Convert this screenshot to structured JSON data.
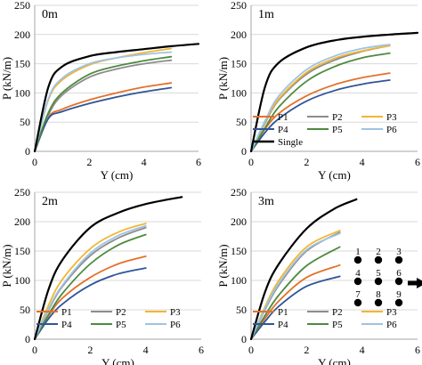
{
  "chart_data": [
    {
      "type": "line",
      "panel_label": "0m",
      "xlabel": "Y (cm)",
      "ylabel": "P (kN/m)",
      "xlim": [
        0,
        6
      ],
      "ylim": [
        0,
        250
      ],
      "xticks": [
        0,
        2,
        4,
        6
      ],
      "yticks": [
        0,
        50,
        100,
        150,
        200,
        250
      ],
      "series": [
        {
          "name": "P1",
          "color": "#e3712a",
          "x": [
            0,
            0.5,
            1,
            2,
            3,
            4,
            5
          ],
          "y": [
            0,
            58,
            72,
            88,
            100,
            110,
            117
          ]
        },
        {
          "name": "P2",
          "color": "#8c8c8c",
          "x": [
            0,
            0.5,
            1,
            2,
            3,
            4,
            5
          ],
          "y": [
            0,
            62,
            96,
            127,
            141,
            150,
            156
          ]
        },
        {
          "name": "P3",
          "color": "#f2b632",
          "x": [
            0,
            0.5,
            1,
            2,
            3,
            4,
            5
          ],
          "y": [
            0,
            88,
            122,
            148,
            160,
            169,
            176
          ]
        },
        {
          "name": "P4",
          "color": "#2f5597",
          "x": [
            0,
            0.5,
            1,
            2,
            3,
            4,
            5
          ],
          "y": [
            0,
            56,
            68,
            82,
            93,
            102,
            109
          ]
        },
        {
          "name": "P5",
          "color": "#4e8a3e",
          "x": [
            0,
            0.5,
            1,
            2,
            3,
            4,
            5
          ],
          "y": [
            0,
            66,
            100,
            132,
            146,
            155,
            162
          ]
        },
        {
          "name": "P6",
          "color": "#9dc3e6",
          "x": [
            0,
            0.5,
            1,
            2,
            3,
            4,
            5
          ],
          "y": [
            0,
            90,
            125,
            150,
            160,
            166,
            170
          ]
        },
        {
          "name": "Single",
          "color": "#000000",
          "x": [
            0,
            0.5,
            1,
            2,
            3,
            4,
            5,
            6
          ],
          "y": [
            0,
            110,
            145,
            163,
            170,
            175,
            180,
            184
          ]
        }
      ]
    },
    {
      "type": "line",
      "panel_label": "1m",
      "xlabel": "Y (cm)",
      "ylabel": "P (kN/m)",
      "xlim": [
        0,
        6
      ],
      "ylim": [
        0,
        250
      ],
      "xticks": [
        0,
        2,
        4,
        6
      ],
      "yticks": [
        0,
        50,
        100,
        150,
        200,
        250
      ],
      "legend": {
        "position": "bottom-left",
        "entries": [
          "P1",
          "P2",
          "P3",
          "P4",
          "P5",
          "P6",
          "Single"
        ]
      },
      "series": [
        {
          "name": "P1",
          "color": "#e3712a",
          "x": [
            0,
            0.5,
            1,
            2,
            3,
            4,
            5
          ],
          "y": [
            0,
            38,
            65,
            95,
            114,
            126,
            134
          ]
        },
        {
          "name": "P2",
          "color": "#8c8c8c",
          "x": [
            0,
            0.5,
            1,
            2,
            3,
            4,
            5
          ],
          "y": [
            0,
            48,
            88,
            132,
            156,
            171,
            181
          ]
        },
        {
          "name": "P3",
          "color": "#f2b632",
          "x": [
            0,
            0.5,
            1,
            2,
            3,
            4,
            5
          ],
          "y": [
            0,
            50,
            90,
            135,
            159,
            172,
            181
          ]
        },
        {
          "name": "P4",
          "color": "#2f5597",
          "x": [
            0,
            0.5,
            1,
            2,
            3,
            4,
            5
          ],
          "y": [
            0,
            32,
            56,
            86,
            104,
            115,
            122
          ]
        },
        {
          "name": "P5",
          "color": "#4e8a3e",
          "x": [
            0,
            0.5,
            1,
            2,
            3,
            4,
            5
          ],
          "y": [
            0,
            40,
            76,
            120,
            145,
            160,
            168
          ]
        },
        {
          "name": "P6",
          "color": "#9dc3e6",
          "x": [
            0,
            0.5,
            1,
            2,
            3,
            4,
            5
          ],
          "y": [
            0,
            52,
            95,
            140,
            163,
            176,
            183
          ]
        },
        {
          "name": "Single",
          "color": "#000000",
          "x": [
            0,
            0.5,
            1,
            2,
            3,
            4,
            5,
            6
          ],
          "y": [
            0,
            110,
            152,
            178,
            190,
            196,
            200,
            203
          ]
        }
      ]
    },
    {
      "type": "line",
      "panel_label": "2m",
      "xlabel": "Y (cm)",
      "ylabel": "P (kN/m)",
      "xlim": [
        0,
        6
      ],
      "ylim": [
        0,
        250
      ],
      "xticks": [
        0,
        2,
        4,
        6
      ],
      "yticks": [
        0,
        50,
        100,
        150,
        200,
        250
      ],
      "legend": {
        "position": "bottom-right",
        "entries": [
          "P1",
          "P2",
          "P3",
          "P4",
          "P5",
          "P6"
        ]
      },
      "series": [
        {
          "name": "P1",
          "color": "#e3712a",
          "x": [
            0,
            0.5,
            1,
            2,
            3,
            4
          ],
          "y": [
            0,
            40,
            70,
            105,
            128,
            141
          ]
        },
        {
          "name": "P2",
          "color": "#8c8c8c",
          "x": [
            0,
            0.5,
            1,
            2,
            3,
            4
          ],
          "y": [
            0,
            50,
            90,
            142,
            172,
            190
          ]
        },
        {
          "name": "P3",
          "color": "#f2b632",
          "x": [
            0,
            0.5,
            1,
            2,
            3,
            4
          ],
          "y": [
            0,
            58,
            102,
            154,
            182,
            197
          ]
        },
        {
          "name": "P4",
          "color": "#2f5597",
          "x": [
            0,
            0.5,
            1,
            2,
            3,
            4
          ],
          "y": [
            0,
            35,
            60,
            92,
            111,
            121
          ]
        },
        {
          "name": "P5",
          "color": "#4e8a3e",
          "x": [
            0,
            0.5,
            1,
            2,
            3,
            4
          ],
          "y": [
            0,
            42,
            78,
            128,
            160,
            178
          ]
        },
        {
          "name": "P6",
          "color": "#9dc3e6",
          "x": [
            0,
            0.5,
            1,
            2,
            3,
            4
          ],
          "y": [
            0,
            52,
            92,
            146,
            176,
            193
          ]
        },
        {
          "name": "Single",
          "color": "#000000",
          "x": [
            0,
            0.5,
            1,
            2,
            3,
            4,
            5.3
          ],
          "y": [
            0,
            85,
            135,
            190,
            215,
            230,
            242
          ]
        }
      ]
    },
    {
      "type": "line",
      "panel_label": "3m",
      "xlabel": "Y (cm)",
      "ylabel": "P (kN/m)",
      "xlim": [
        0,
        6
      ],
      "ylim": [
        0,
        250
      ],
      "xticks": [
        0,
        2,
        4,
        6
      ],
      "yticks": [
        0,
        50,
        100,
        150,
        200,
        250
      ],
      "legend": {
        "position": "bottom-right",
        "entries": [
          "P1",
          "P2",
          "P3",
          "P4",
          "P5",
          "P6"
        ]
      },
      "series": [
        {
          "name": "P1",
          "color": "#e3712a",
          "x": [
            0,
            0.5,
            1,
            2,
            3.2
          ],
          "y": [
            0,
            35,
            65,
            105,
            126
          ]
        },
        {
          "name": "P2",
          "color": "#8c8c8c",
          "x": [
            0,
            0.5,
            1,
            2,
            3.2
          ],
          "y": [
            0,
            50,
            92,
            150,
            182
          ]
        },
        {
          "name": "P3",
          "color": "#f2b632",
          "x": [
            0,
            0.5,
            1,
            2,
            3.2
          ],
          "y": [
            0,
            55,
            100,
            157,
            185
          ]
        },
        {
          "name": "P4",
          "color": "#2f5597",
          "x": [
            0,
            0.5,
            1,
            2,
            3.2
          ],
          "y": [
            0,
            30,
            56,
            90,
            107
          ]
        },
        {
          "name": "P5",
          "color": "#4e8a3e",
          "x": [
            0,
            0.5,
            1,
            2,
            3.2
          ],
          "y": [
            0,
            40,
            75,
            125,
            157
          ]
        },
        {
          "name": "P6",
          "color": "#9dc3e6",
          "x": [
            0,
            0.5,
            1,
            2,
            3.2
          ],
          "y": [
            0,
            52,
            95,
            152,
            180
          ]
        },
        {
          "name": "Single",
          "color": "#000000",
          "x": [
            0,
            0.5,
            1,
            2,
            3,
            3.8
          ],
          "y": [
            0,
            80,
            128,
            188,
            222,
            238
          ]
        }
      ],
      "pile_layout_labels": [
        "1",
        "2",
        "3",
        "4",
        "5",
        "6",
        "7",
        "8",
        "9"
      ]
    }
  ]
}
